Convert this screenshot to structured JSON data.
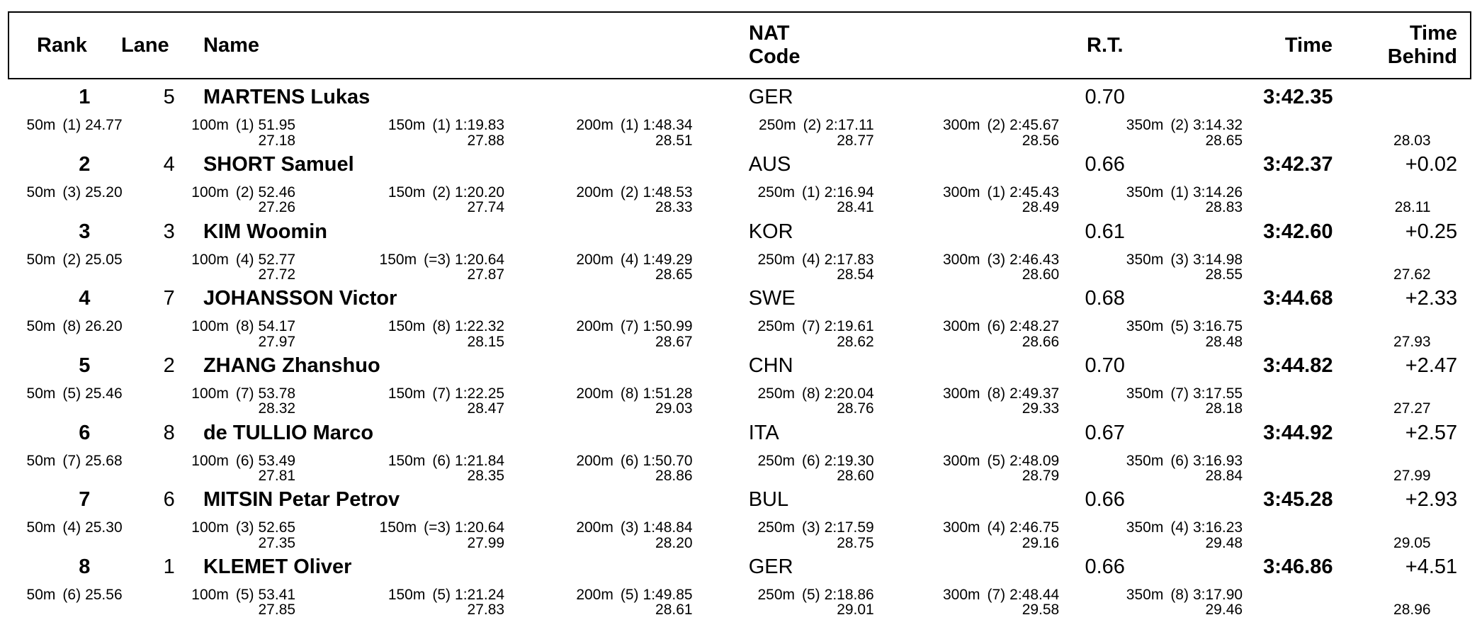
{
  "header": {
    "rank": "Rank",
    "lane": "Lane",
    "name": "Name",
    "nat": "NAT Code",
    "rt": "R.T.",
    "time": "Time",
    "behind": "Time Behind"
  },
  "rows": [
    {
      "rank": 1,
      "lane": 5,
      "name": "MARTENS Lukas",
      "nat": "GER",
      "rt": "0.70",
      "time": "3:42.35",
      "splits": [
        {
          "dist": "50m",
          "place": "(1)",
          "time": "24.77"
        },
        {
          "dist": "100m",
          "place": "(1)",
          "time": "51.95",
          "lap": "27.18"
        },
        {
          "dist": "150m",
          "place": "(1)",
          "time": "1:19.83",
          "lap": "27.88"
        },
        {
          "dist": "200m",
          "place": "(1)",
          "time": "1:48.34",
          "lap": "28.51"
        },
        {
          "dist": "250m",
          "place": "(2)",
          "time": "2:17.11",
          "lap": "28.77"
        },
        {
          "dist": "300m",
          "place": "(2)",
          "time": "2:45.67",
          "lap": "28.56"
        },
        {
          "dist": "350m",
          "place": "(2)",
          "time": "3:14.32",
          "lap": "28.65"
        }
      ],
      "last_lap": "28.03"
    },
    {
      "rank": 2,
      "lane": 4,
      "name": "SHORT Samuel",
      "nat": "AUS",
      "rt": "0.66",
      "time": "3:42.37",
      "behind": "+0.02",
      "splits": [
        {
          "dist": "50m",
          "place": "(3)",
          "time": "25.20"
        },
        {
          "dist": "100m",
          "place": "(2)",
          "time": "52.46",
          "lap": "27.26"
        },
        {
          "dist": "150m",
          "place": "(2)",
          "time": "1:20.20",
          "lap": "27.74"
        },
        {
          "dist": "200m",
          "place": "(2)",
          "time": "1:48.53",
          "lap": "28.33"
        },
        {
          "dist": "250m",
          "place": "(1)",
          "time": "2:16.94",
          "lap": "28.41"
        },
        {
          "dist": "300m",
          "place": "(1)",
          "time": "2:45.43",
          "lap": "28.49"
        },
        {
          "dist": "350m",
          "place": "(1)",
          "time": "3:14.26",
          "lap": "28.83"
        }
      ],
      "last_lap": "28.11"
    },
    {
      "rank": 3,
      "lane": 3,
      "name": "KIM Woomin",
      "nat": "KOR",
      "rt": "0.61",
      "time": "3:42.60",
      "behind": "+0.25",
      "splits": [
        {
          "dist": "50m",
          "place": "(2)",
          "time": "25.05"
        },
        {
          "dist": "100m",
          "place": "(4)",
          "time": "52.77",
          "lap": "27.72"
        },
        {
          "dist": "150m",
          "place": "(=3)",
          "time": "1:20.64",
          "lap": "27.87"
        },
        {
          "dist": "200m",
          "place": "(4)",
          "time": "1:49.29",
          "lap": "28.65"
        },
        {
          "dist": "250m",
          "place": "(4)",
          "time": "2:17.83",
          "lap": "28.54"
        },
        {
          "dist": "300m",
          "place": "(3)",
          "time": "2:46.43",
          "lap": "28.60"
        },
        {
          "dist": "350m",
          "place": "(3)",
          "time": "3:14.98",
          "lap": "28.55"
        }
      ],
      "last_lap": "27.62"
    },
    {
      "rank": 4,
      "lane": 7,
      "name": "JOHANSSON Victor",
      "nat": "SWE",
      "rt": "0.68",
      "time": "3:44.68",
      "behind": "+2.33",
      "splits": [
        {
          "dist": "50m",
          "place": "(8)",
          "time": "26.20"
        },
        {
          "dist": "100m",
          "place": "(8)",
          "time": "54.17",
          "lap": "27.97"
        },
        {
          "dist": "150m",
          "place": "(8)",
          "time": "1:22.32",
          "lap": "28.15"
        },
        {
          "dist": "200m",
          "place": "(7)",
          "time": "1:50.99",
          "lap": "28.67"
        },
        {
          "dist": "250m",
          "place": "(7)",
          "time": "2:19.61",
          "lap": "28.62"
        },
        {
          "dist": "300m",
          "place": "(6)",
          "time": "2:48.27",
          "lap": "28.66"
        },
        {
          "dist": "350m",
          "place": "(5)",
          "time": "3:16.75",
          "lap": "28.48"
        }
      ],
      "last_lap": "27.93"
    },
    {
      "rank": 5,
      "lane": 2,
      "name": "ZHANG Zhanshuo",
      "nat": "CHN",
      "rt": "0.70",
      "time": "3:44.82",
      "behind": "+2.47",
      "splits": [
        {
          "dist": "50m",
          "place": "(5)",
          "time": "25.46"
        },
        {
          "dist": "100m",
          "place": "(7)",
          "time": "53.78",
          "lap": "28.32"
        },
        {
          "dist": "150m",
          "place": "(7)",
          "time": "1:22.25",
          "lap": "28.47"
        },
        {
          "dist": "200m",
          "place": "(8)",
          "time": "1:51.28",
          "lap": "29.03"
        },
        {
          "dist": "250m",
          "place": "(8)",
          "time": "2:20.04",
          "lap": "28.76"
        },
        {
          "dist": "300m",
          "place": "(8)",
          "time": "2:49.37",
          "lap": "29.33"
        },
        {
          "dist": "350m",
          "place": "(7)",
          "time": "3:17.55",
          "lap": "28.18"
        }
      ],
      "last_lap": "27.27"
    },
    {
      "rank": 6,
      "lane": 8,
      "name": "de TULLIO Marco",
      "nat": "ITA",
      "rt": "0.67",
      "time": "3:44.92",
      "behind": "+2.57",
      "splits": [
        {
          "dist": "50m",
          "place": "(7)",
          "time": "25.68"
        },
        {
          "dist": "100m",
          "place": "(6)",
          "time": "53.49",
          "lap": "27.81"
        },
        {
          "dist": "150m",
          "place": "(6)",
          "time": "1:21.84",
          "lap": "28.35"
        },
        {
          "dist": "200m",
          "place": "(6)",
          "time": "1:50.70",
          "lap": "28.86"
        },
        {
          "dist": "250m",
          "place": "(6)",
          "time": "2:19.30",
          "lap": "28.60"
        },
        {
          "dist": "300m",
          "place": "(5)",
          "time": "2:48.09",
          "lap": "28.79"
        },
        {
          "dist": "350m",
          "place": "(6)",
          "time": "3:16.93",
          "lap": "28.84"
        }
      ],
      "last_lap": "27.99"
    },
    {
      "rank": 7,
      "lane": 6,
      "name": "MITSIN Petar Petrov",
      "nat": "BUL",
      "rt": "0.66",
      "time": "3:45.28",
      "behind": "+2.93",
      "splits": [
        {
          "dist": "50m",
          "place": "(4)",
          "time": "25.30"
        },
        {
          "dist": "100m",
          "place": "(3)",
          "time": "52.65",
          "lap": "27.35"
        },
        {
          "dist": "150m",
          "place": "(=3)",
          "time": "1:20.64",
          "lap": "27.99"
        },
        {
          "dist": "200m",
          "place": "(3)",
          "time": "1:48.84",
          "lap": "28.20"
        },
        {
          "dist": "250m",
          "place": "(3)",
          "time": "2:17.59",
          "lap": "28.75"
        },
        {
          "dist": "300m",
          "place": "(4)",
          "time": "2:46.75",
          "lap": "29.16"
        },
        {
          "dist": "350m",
          "place": "(4)",
          "time": "3:16.23",
          "lap": "29.48"
        }
      ],
      "last_lap": "29.05"
    },
    {
      "rank": 8,
      "lane": 1,
      "name": "KLEMET Oliver",
      "nat": "GER",
      "rt": "0.66",
      "time": "3:46.86",
      "behind": "+4.51",
      "splits": [
        {
          "dist": "50m",
          "place": "(6)",
          "time": "25.56"
        },
        {
          "dist": "100m",
          "place": "(5)",
          "time": "53.41",
          "lap": "27.85"
        },
        {
          "dist": "150m",
          "place": "(5)",
          "time": "1:21.24",
          "lap": "27.83"
        },
        {
          "dist": "200m",
          "place": "(5)",
          "time": "1:49.85",
          "lap": "28.61"
        },
        {
          "dist": "250m",
          "place": "(5)",
          "time": "2:18.86",
          "lap": "29.01"
        },
        {
          "dist": "300m",
          "place": "(7)",
          "time": "2:48.44",
          "lap": "29.58"
        },
        {
          "dist": "350m",
          "place": "(8)",
          "time": "3:17.90",
          "lap": "29.46"
        }
      ],
      "last_lap": "28.96"
    }
  ]
}
